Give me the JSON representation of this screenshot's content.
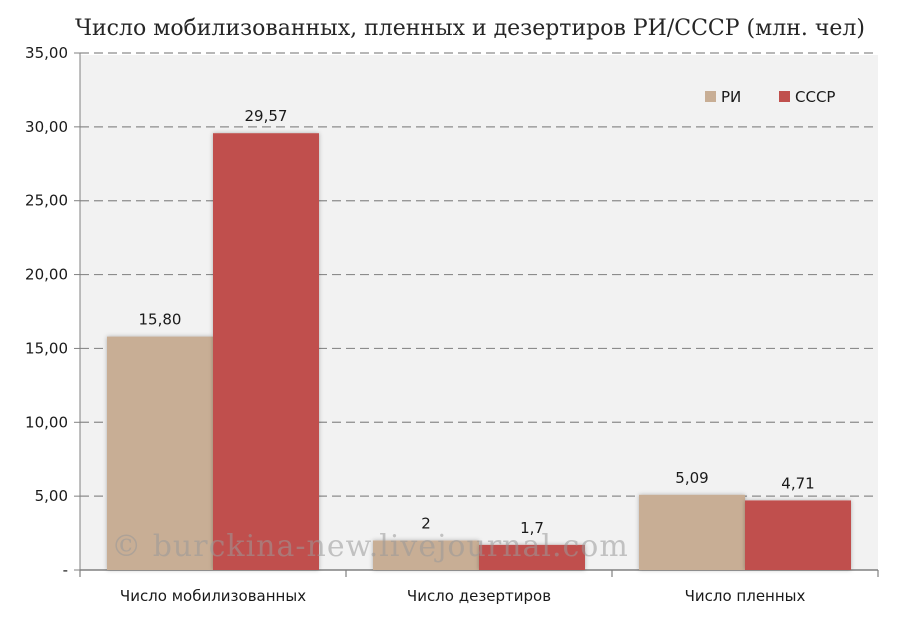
{
  "chart_data": {
    "type": "bar",
    "title": "Число мобилизованных, пленных и дезертиров РИ/СССР (млн. чел)",
    "categories": [
      "Число мобилизованных",
      "Число дезертиров",
      "Число пленных"
    ],
    "series": [
      {
        "name": "РИ",
        "values": [
          15.8,
          2,
          5.09
        ],
        "labels": [
          "15,80",
          "2",
          "5,09"
        ],
        "color": "#c8ae95"
      },
      {
        "name": "СССР",
        "values": [
          29.57,
          1.7,
          4.71
        ],
        "labels": [
          "29,57",
          "1,7",
          "4,71"
        ],
        "color": "#c0504d"
      }
    ],
    "ylim": [
      0,
      35
    ],
    "yticks": [
      0,
      5,
      10,
      15,
      20,
      25,
      30,
      35
    ],
    "ytick_labels": [
      "-",
      "5,00",
      "10,00",
      "15,00",
      "20,00",
      "25,00",
      "30,00",
      "35,00"
    ],
    "xlabel": "",
    "ylabel": "",
    "grid": true,
    "legend_position": "top-right",
    "plot_background": "#f2f2f2",
    "watermark": "© burckina-new.livejournal.com"
  }
}
